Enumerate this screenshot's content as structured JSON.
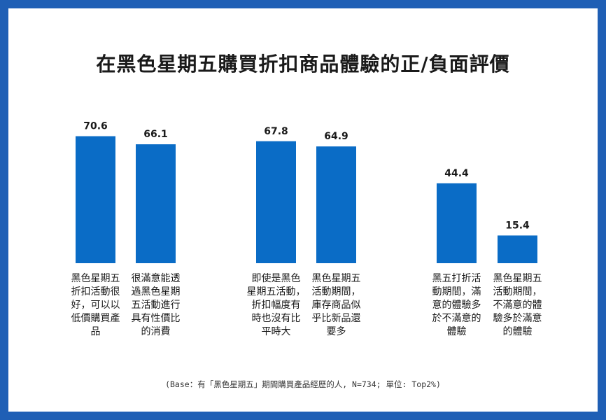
{
  "colors": {
    "frame": "#1f5fb5",
    "bar": "#0a6cc6",
    "text": "#1a1a1a"
  },
  "chart_data": {
    "type": "bar",
    "title": "在黑色星期五購買折扣商品體驗的正/負面評價",
    "categories": [
      "黑色星期五\n折扣活動很\n好，可以以\n低價購買產\n品",
      "很滿意能透\n過黑色星期\n五活動進行\n具有性價比\n的消費",
      "即使是黑色\n星期五活動，\n折扣幅度有\n時也沒有比\n平時大",
      "黑色星期五\n活動期間，\n庫存商品似\n乎比新品還\n要多",
      "黑五打折活\n動期間，滿\n意的體驗多\n於不滿意的\n體驗",
      "黑色星期五\n活動期間，\n不滿意的體\n驗多於滿意\n的體驗"
    ],
    "values": [
      70.6,
      66.1,
      67.8,
      64.9,
      44.4,
      15.4
    ],
    "value_labels": [
      "70.6",
      "66.1",
      "67.8",
      "64.9",
      "44.4",
      "15.4"
    ],
    "groups": [
      [
        0,
        1
      ],
      [
        2,
        3
      ],
      [
        4,
        5
      ]
    ],
    "ylim": [
      0,
      100
    ],
    "grid": false,
    "xlabel": "",
    "ylabel": ""
  },
  "footnote": "(Base：有「黑色星期五」期間購買產品經歷的人, N=734; 單位: Top2%)"
}
